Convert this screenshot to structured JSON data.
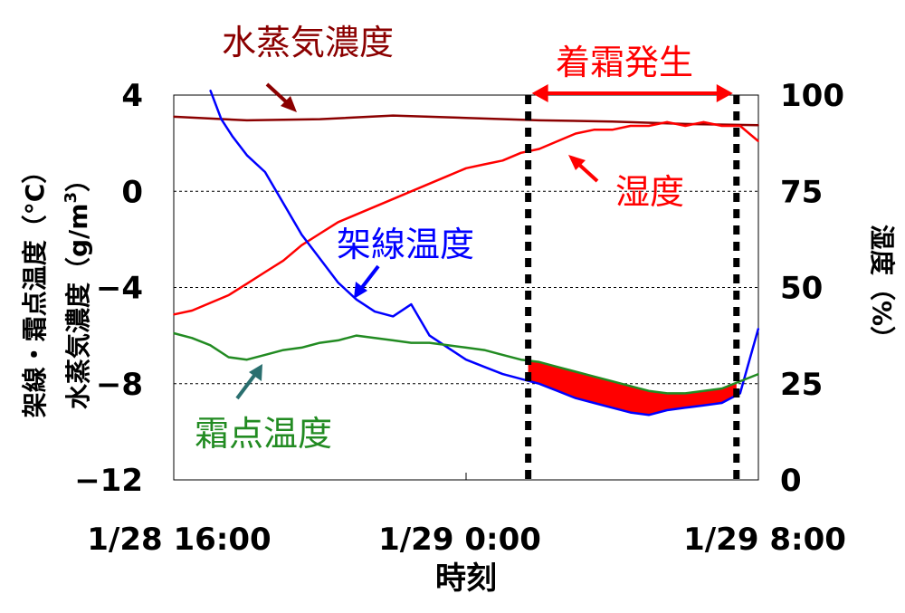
{
  "chart_data": {
    "type": "line",
    "xlabel": "時刻",
    "x_ticks": [
      "1/28 16:00",
      "1/29 0:00",
      "1/29 8:00"
    ],
    "xlim_hours": [
      0,
      16
    ],
    "y_left": {
      "label_line1": "架線・霜点温度（°C）",
      "label_line2_main": "水蒸気濃度（g/m",
      "label_line2_sup": "3",
      "label_line2_end": "）",
      "ticks": [
        "4",
        "0",
        "−4",
        "−8",
        "−12"
      ],
      "tick_values": [
        4,
        0,
        -4,
        -8,
        -12
      ],
      "ylim": [
        -12,
        4
      ]
    },
    "y_right": {
      "label": "湿度（%）",
      "ticks": [
        "100",
        "75",
        "50",
        "25",
        "0"
      ],
      "tick_values": [
        100,
        75,
        50,
        25,
        0
      ],
      "ylim": [
        0,
        100
      ]
    },
    "grid": "horizontal dashed at 0, -4, -8",
    "annotations": {
      "frost_period": "着霜発生",
      "frost_start_hour": 9.7,
      "frost_end_hour": 15.4
    },
    "series": [
      {
        "name": "水蒸気濃度",
        "axis": "left",
        "color": "#8B0000",
        "x": [
          0,
          2,
          4,
          6,
          8,
          10,
          12,
          14,
          16
        ],
        "y": [
          3.1,
          2.95,
          3.0,
          3.15,
          3.05,
          2.95,
          2.9,
          2.8,
          2.75
        ]
      },
      {
        "name": "湿度",
        "axis": "right",
        "color": "#ff0000",
        "x": [
          0,
          0.5,
          1,
          1.5,
          2,
          2.5,
          3,
          3.5,
          4,
          4.5,
          5,
          5.5,
          6,
          6.5,
          7,
          7.5,
          8,
          8.5,
          9,
          9.5,
          10,
          10.5,
          11,
          11.5,
          12,
          12.5,
          13,
          13.5,
          14,
          14.5,
          15,
          15.5,
          16
        ],
        "y": [
          43,
          44,
          46,
          48,
          51,
          54,
          57,
          61,
          64,
          67,
          69,
          71,
          73,
          75,
          77,
          79,
          81,
          82,
          83,
          85,
          86,
          88,
          90,
          91,
          91,
          92,
          92,
          93,
          92,
          93,
          92,
          92,
          88
        ]
      },
      {
        "name": "架線温度",
        "axis": "left",
        "color": "#0000ff",
        "x": [
          1,
          1.3,
          1.6,
          2,
          2.5,
          3,
          3.5,
          4,
          4.5,
          5,
          5.5,
          6,
          6.5,
          7,
          7.5,
          8,
          8.5,
          9,
          9.5,
          10,
          10.5,
          11,
          11.5,
          12,
          12.5,
          13,
          13.5,
          14,
          14.5,
          15,
          15.5,
          16
        ],
        "y": [
          4.2,
          3.0,
          2.3,
          1.5,
          0.8,
          -0.5,
          -1.8,
          -2.8,
          -3.8,
          -4.5,
          -5.0,
          -5.2,
          -4.7,
          -6.0,
          -6.5,
          -7.0,
          -7.3,
          -7.6,
          -7.8,
          -8.0,
          -8.3,
          -8.6,
          -8.8,
          -9.0,
          -9.2,
          -9.3,
          -9.1,
          -9.0,
          -8.9,
          -8.8,
          -8.4,
          -5.7
        ]
      },
      {
        "name": "霜点温度",
        "axis": "left",
        "color": "#228B22",
        "x": [
          0,
          0.5,
          1,
          1.5,
          2,
          2.5,
          3,
          3.5,
          4,
          4.5,
          5,
          5.5,
          6,
          6.5,
          7,
          7.5,
          8,
          8.5,
          9,
          9.5,
          10,
          10.5,
          11,
          11.5,
          12,
          12.5,
          13,
          13.5,
          14,
          14.5,
          15,
          15.5,
          16
        ],
        "y": [
          -5.9,
          -6.1,
          -6.4,
          -6.9,
          -7.0,
          -6.8,
          -6.6,
          -6.5,
          -6.3,
          -6.2,
          -6.0,
          -6.1,
          -6.2,
          -6.3,
          -6.3,
          -6.4,
          -6.5,
          -6.6,
          -6.8,
          -7.0,
          -7.1,
          -7.3,
          -7.5,
          -7.7,
          -7.9,
          -8.1,
          -8.3,
          -8.4,
          -8.4,
          -8.3,
          -8.2,
          -7.9,
          -7.6
        ]
      }
    ],
    "labels": {
      "vapor": "水蒸気濃度",
      "humidity": "湿度",
      "wire": "架線温度",
      "frost_point": "霜点温度"
    }
  }
}
